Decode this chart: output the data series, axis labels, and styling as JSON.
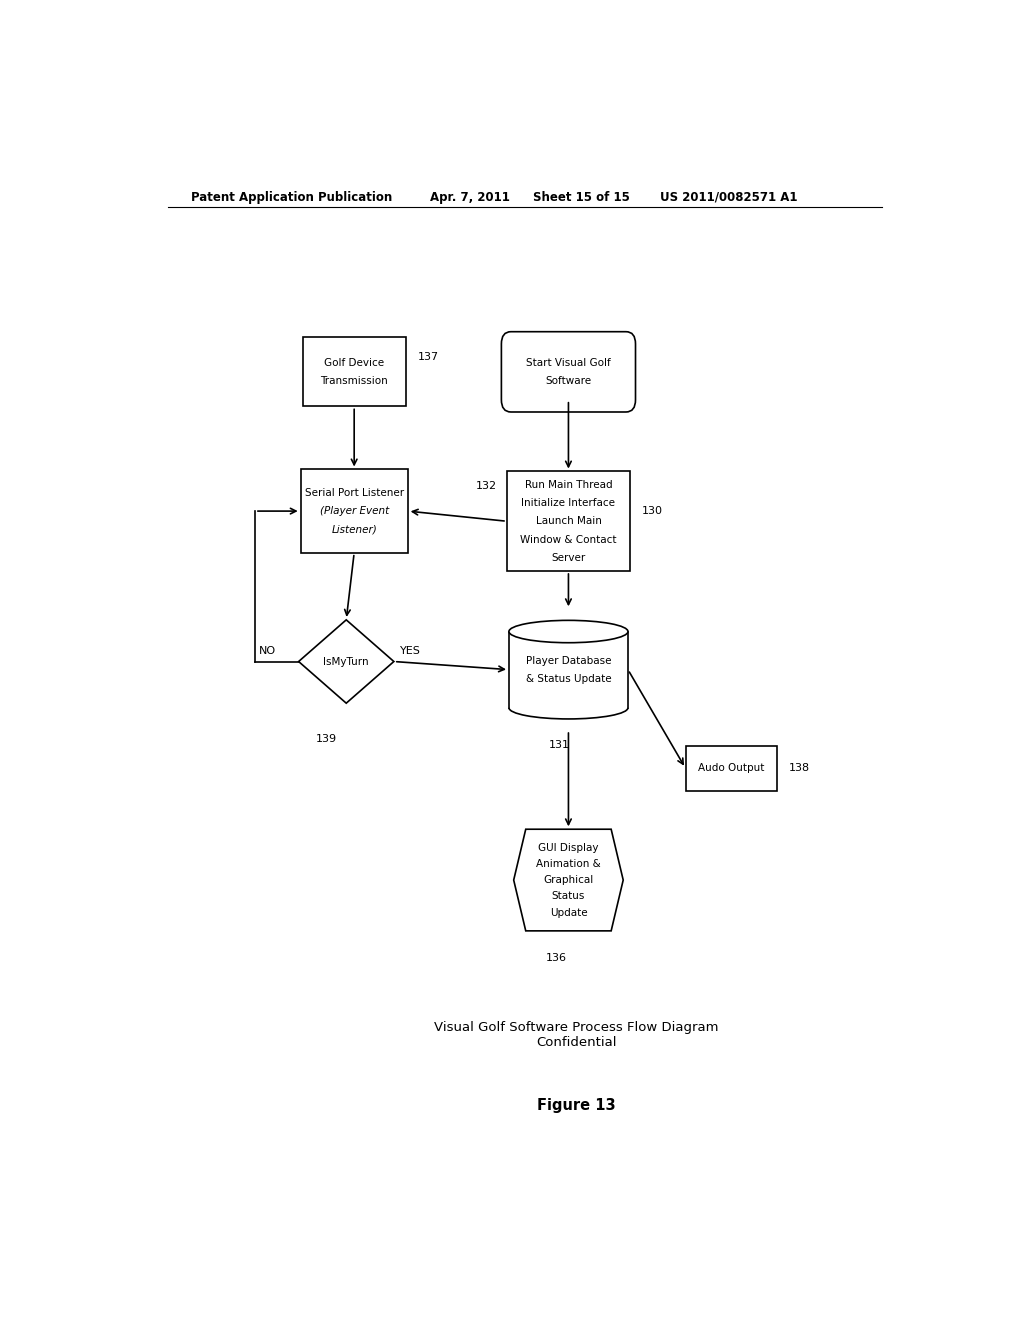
{
  "bg_color": "#ffffff",
  "header_left": "Patent Application Publication",
  "header_mid": "Apr. 7, 2011",
  "header_mid2": "Sheet 15 of 15",
  "header_right": "US 2011/0082571 A1",
  "caption_line1": "Visual Golf Software Process Flow Diagram",
  "caption_line2": "Confidential",
  "figure_label": "Figure 13",
  "font_size_node": 7.5,
  "font_size_header": 8.5,
  "font_size_caption": 9.5,
  "font_size_figure": 10.5,
  "font_size_label": 8.0
}
